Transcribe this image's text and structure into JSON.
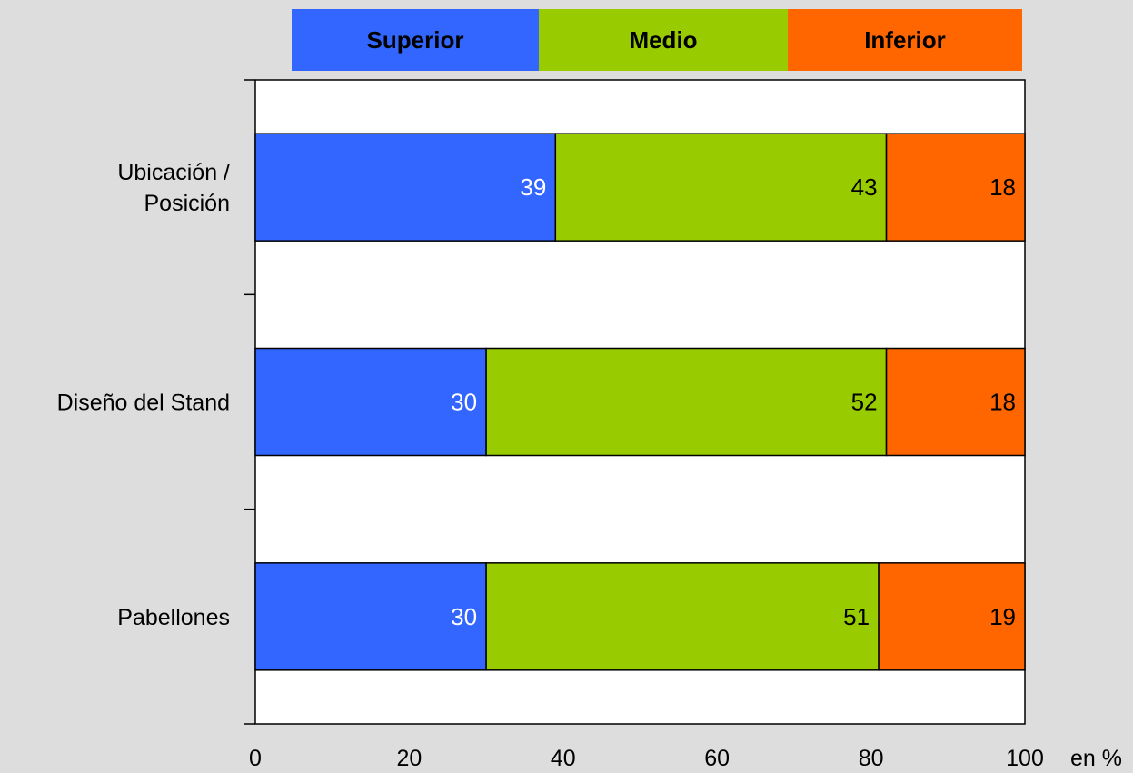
{
  "chart_data": {
    "type": "bar",
    "orientation": "horizontal",
    "stacked": true,
    "categories": [
      [
        "Ubicación /",
        "Posición"
      ],
      [
        "Diseño del Stand"
      ],
      [
        "Pabellones"
      ]
    ],
    "series": [
      {
        "name": "Superior",
        "color": "#3366ff",
        "label_color": "#ffffff",
        "values": [
          39,
          30,
          30
        ]
      },
      {
        "name": "Medio",
        "color": "#99cc00",
        "label_color": "#000000",
        "values": [
          43,
          52,
          51
        ]
      },
      {
        "name": "Inferior",
        "color": "#ff6600",
        "label_color": "#000000",
        "values": [
          18,
          18,
          19
        ]
      }
    ],
    "xlim": [
      0,
      100
    ],
    "xticks": [
      "0",
      "20",
      "40",
      "60",
      "80",
      "100"
    ],
    "xunit": "en %",
    "legend_position": "top",
    "grid": false,
    "plot_background": "#ffffff",
    "page_background": "#dddddd"
  }
}
